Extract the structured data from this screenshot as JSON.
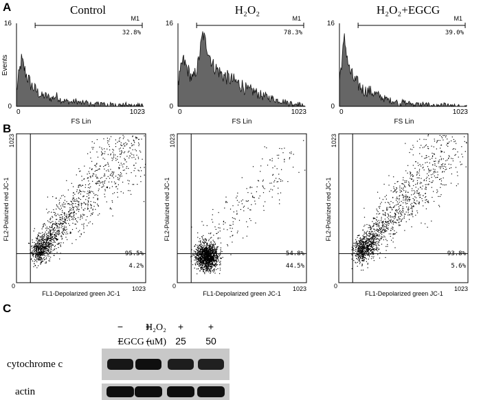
{
  "figure": {
    "panel_labels": [
      "A",
      "B",
      "C"
    ]
  },
  "panel_a": {
    "ylabel": "Events",
    "xlabel": "FS Lin",
    "y_ticks": [
      "0",
      "16"
    ],
    "x_ticks": [
      "0",
      "1023"
    ],
    "gate_label": "M1",
    "histograms": [
      {
        "title": "Control",
        "gate_percent": "32.8%"
      },
      {
        "title": "H₂O₂",
        "gate_percent": "78.3%"
      },
      {
        "title": "H₂O₂+EGCG",
        "gate_percent": "39.0%"
      }
    ]
  },
  "panel_b": {
    "xlabel": "FL1-Depolarized green JC-1",
    "ylabel": "FL2-Polarized red JC-1",
    "x_ticks": [
      "0",
      "1023"
    ],
    "y_ticks": [
      "0",
      "1023"
    ],
    "plots": [
      {
        "upper_percent": "95.5%",
        "lower_percent": "4.2%"
      },
      {
        "upper_percent": "54.8%",
        "lower_percent": "44.5%"
      },
      {
        "upper_percent": "93.8%",
        "lower_percent": "5.6%"
      }
    ]
  },
  "panel_c": {
    "row_labels": [
      "H₂O₂",
      "EGCG (uM)"
    ],
    "h2o2": [
      "−",
      "+",
      "+",
      "+"
    ],
    "egcg": [
      "−",
      "−",
      "25",
      "50"
    ],
    "blot_labels": [
      "cytochrome c",
      "actin"
    ],
    "cytochrome_c_relative_intensity": [
      0.85,
      1.0,
      0.75,
      0.7
    ],
    "actin_relative_intensity": [
      1.0,
      1.0,
      1.0,
      0.95
    ]
  },
  "chart_data": [
    {
      "type": "area",
      "title": "Control",
      "xlabel": "FS Lin",
      "ylabel": "Events",
      "xlim": [
        0,
        1023
      ],
      "ylim": [
        0,
        16
      ],
      "gate": {
        "label": "M1",
        "range": [
          150,
          1023
        ],
        "percent": 32.8
      },
      "x": [
        0,
        40,
        80,
        120,
        160,
        200,
        240,
        280,
        320,
        360,
        400,
        440,
        480,
        520,
        560,
        600,
        640,
        680,
        720,
        760,
        800,
        840,
        880,
        920,
        960,
        1000,
        1023
      ],
      "values": [
        3,
        9,
        6,
        4,
        3,
        2,
        2,
        1.5,
        2,
        1.2,
        1,
        0.8,
        1,
        0.6,
        0.8,
        0.5,
        0.4,
        0.6,
        0.3,
        0.4,
        0.2,
        0.3,
        0.4,
        0.2,
        0.3,
        0.2,
        0.1
      ]
    },
    {
      "type": "area",
      "title": "H₂O₂",
      "xlabel": "FS Lin",
      "ylabel": "Events",
      "xlim": [
        0,
        1023
      ],
      "ylim": [
        0,
        16
      ],
      "gate": {
        "label": "M1",
        "range": [
          150,
          1023
        ],
        "percent": 78.3
      },
      "x": [
        0,
        40,
        80,
        120,
        160,
        200,
        240,
        280,
        320,
        360,
        400,
        440,
        480,
        520,
        560,
        600,
        640,
        680,
        720,
        760,
        800,
        840,
        880,
        920,
        960,
        1000,
        1023
      ],
      "values": [
        4,
        9,
        7,
        5,
        8,
        14,
        11,
        8,
        7,
        6,
        5.5,
        5,
        4.5,
        4,
        3,
        3,
        2.5,
        2,
        1.8,
        1.5,
        1.2,
        1,
        0.8,
        0.6,
        0.5,
        0.3,
        0.2
      ]
    },
    {
      "type": "area",
      "title": "H₂O₂+EGCG",
      "xlabel": "FS Lin",
      "ylabel": "Events",
      "xlim": [
        0,
        1023
      ],
      "ylim": [
        0,
        16
      ],
      "gate": {
        "label": "M1",
        "range": [
          150,
          1023
        ],
        "percent": 39.0
      },
      "x": [
        0,
        40,
        80,
        120,
        160,
        200,
        240,
        280,
        320,
        360,
        400,
        440,
        480,
        520,
        560,
        600,
        640,
        680,
        720,
        760,
        800,
        840,
        880,
        920,
        960,
        1000,
        1023
      ],
      "values": [
        5,
        13,
        7,
        5,
        4,
        3,
        3,
        2.5,
        2,
        1.5,
        1.2,
        1,
        0.8,
        0.8,
        0.6,
        0.5,
        0.4,
        0.5,
        0.3,
        0.3,
        0.2,
        0.3,
        0.2,
        0.2,
        0.1,
        0.1,
        0
      ]
    },
    {
      "type": "scatter",
      "xlabel": "FL1-Depolarized green JC-1",
      "ylabel": "FL2-Polarized red JC-1",
      "xlim": [
        0,
        1023
      ],
      "ylim": [
        0,
        1023
      ],
      "quadrant": {
        "x": 110,
        "y": 200
      },
      "upper_percent": 95.5,
      "lower_percent": 4.2,
      "population": {
        "center": [
          230,
          330
        ],
        "spread": "elongated toward upper right"
      }
    },
    {
      "type": "scatter",
      "xlabel": "FL1-Depolarized green JC-1",
      "ylabel": "FL2-Polarized red JC-1",
      "xlim": [
        0,
        1023
      ],
      "ylim": [
        0,
        1023
      ],
      "quadrant": {
        "x": 110,
        "y": 200
      },
      "upper_percent": 54.8,
      "lower_percent": 44.5,
      "population": {
        "center": [
          230,
          180
        ],
        "spread": "compact"
      }
    },
    {
      "type": "scatter",
      "xlabel": "FL1-Depolarized green JC-1",
      "ylabel": "FL2-Polarized red JC-1",
      "xlim": [
        0,
        1023
      ],
      "ylim": [
        0,
        1023
      ],
      "quadrant": {
        "x": 110,
        "y": 200
      },
      "upper_percent": 93.8,
      "lower_percent": 5.6,
      "population": {
        "center": [
          240,
          340
        ],
        "spread": "elongated toward upper right"
      }
    }
  ]
}
